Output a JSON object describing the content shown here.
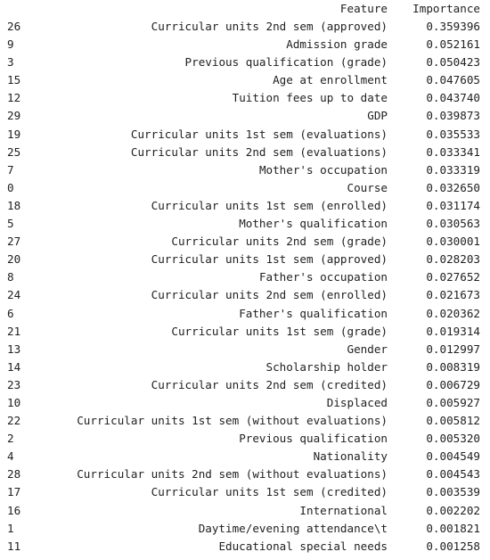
{
  "header": {
    "feature": "Feature",
    "importance": "Importance"
  },
  "rows": [
    {
      "index": "26",
      "feature": "Curricular units 2nd sem (approved)",
      "importance": "0.359396"
    },
    {
      "index": "9",
      "feature": "Admission grade",
      "importance": "0.052161"
    },
    {
      "index": "3",
      "feature": "Previous qualification (grade)",
      "importance": "0.050423"
    },
    {
      "index": "15",
      "feature": "Age at enrollment",
      "importance": "0.047605"
    },
    {
      "index": "12",
      "feature": "Tuition fees up to date",
      "importance": "0.043740"
    },
    {
      "index": "29",
      "feature": "GDP",
      "importance": "0.039873"
    },
    {
      "index": "19",
      "feature": "Curricular units 1st sem (evaluations)",
      "importance": "0.035533"
    },
    {
      "index": "25",
      "feature": "Curricular units 2nd sem (evaluations)",
      "importance": "0.033341"
    },
    {
      "index": "7",
      "feature": "Mother's occupation",
      "importance": "0.033319"
    },
    {
      "index": "0",
      "feature": "Course",
      "importance": "0.032650"
    },
    {
      "index": "18",
      "feature": "Curricular units 1st sem (enrolled)",
      "importance": "0.031174"
    },
    {
      "index": "5",
      "feature": "Mother's qualification",
      "importance": "0.030563"
    },
    {
      "index": "27",
      "feature": "Curricular units 2nd sem (grade)",
      "importance": "0.030001"
    },
    {
      "index": "20",
      "feature": "Curricular units 1st sem (approved)",
      "importance": "0.028203"
    },
    {
      "index": "8",
      "feature": "Father's occupation",
      "importance": "0.027652"
    },
    {
      "index": "24",
      "feature": "Curricular units 2nd sem (enrolled)",
      "importance": "0.021673"
    },
    {
      "index": "6",
      "feature": "Father's qualification",
      "importance": "0.020362"
    },
    {
      "index": "21",
      "feature": "Curricular units 1st sem (grade)",
      "importance": "0.019314"
    },
    {
      "index": "13",
      "feature": "Gender",
      "importance": "0.012997"
    },
    {
      "index": "14",
      "feature": "Scholarship holder",
      "importance": "0.008319"
    },
    {
      "index": "23",
      "feature": "Curricular units 2nd sem (credited)",
      "importance": "0.006729"
    },
    {
      "index": "10",
      "feature": "Displaced",
      "importance": "0.005927"
    },
    {
      "index": "22",
      "feature": "Curricular units 1st sem (without evaluations)",
      "importance": "0.005812"
    },
    {
      "index": "2",
      "feature": "Previous qualification",
      "importance": "0.005320"
    },
    {
      "index": "4",
      "feature": "Nationality",
      "importance": "0.004549"
    },
    {
      "index": "28",
      "feature": "Curricular units 2nd sem (without evaluations)",
      "importance": "0.004543"
    },
    {
      "index": "17",
      "feature": "Curricular units 1st sem (credited)",
      "importance": "0.003539"
    },
    {
      "index": "16",
      "feature": "International",
      "importance": "0.002202"
    },
    {
      "index": "1",
      "feature": "Daytime/evening attendance\\t",
      "importance": "0.001821"
    },
    {
      "index": "11",
      "feature": "Educational special needs",
      "importance": "0.001258"
    }
  ]
}
